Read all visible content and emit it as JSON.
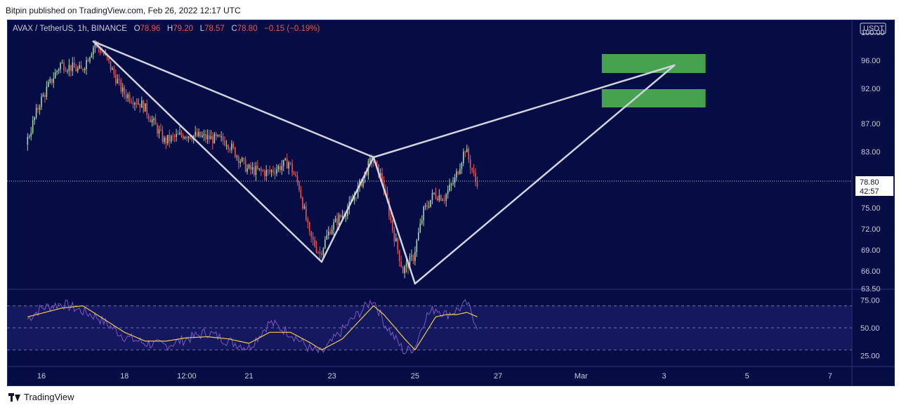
{
  "header": {
    "published": "Bitpin published on TradingView.com, Feb 26, 2022 12:17 UTC"
  },
  "legend": {
    "symbol": "AVAX / TetherUS, 1h, BINANCE",
    "o_label": "O",
    "o": "78.96",
    "h_label": "H",
    "h": "79.20",
    "l_label": "L",
    "l": "78.57",
    "c_label": "C",
    "c": "78.80",
    "change": "−0.15 (−0.19%)"
  },
  "price_axis": {
    "currency": "USDT",
    "ticks": [
      "100.00",
      "96.00",
      "92.00",
      "87.00",
      "83.00",
      "75.00",
      "72.00",
      "69.00",
      "66.00",
      "63.50"
    ],
    "last_price": "78.80",
    "countdown": "42:57"
  },
  "rsi_axis": {
    "ticks": [
      "75.00",
      "50.00",
      "25.00"
    ]
  },
  "time_axis": {
    "ticks": [
      "16",
      "18",
      "12:00",
      "21",
      "23",
      "25",
      "27",
      "Mar",
      "3",
      "5",
      "7"
    ]
  },
  "footer": {
    "brand": "TradingView"
  },
  "colors": {
    "background": "#050d44",
    "up": "#a5d6a7",
    "down": "#ef5350",
    "pattern": "#d1d4dc",
    "target_zone": "#4caf50",
    "rsi": "#7e57c2",
    "rsi_ma": "#f2c94c"
  },
  "chart_data": {
    "type": "candlestick",
    "symbol": "AVAX / TetherUS",
    "interval": "1h",
    "exchange": "BINANCE",
    "ylim": [
      63.5,
      101
    ],
    "price_path": [
      [
        "Feb 15 16:00",
        84
      ],
      [
        "Feb 16 00:00",
        90
      ],
      [
        "Feb 16 12:00",
        95.5
      ],
      [
        "Feb 17 00:00",
        94.5
      ],
      [
        "Feb 17 08:00",
        98.5
      ],
      [
        "Feb 17 14:00",
        96.5
      ],
      [
        "Feb 18 00:00",
        91.5
      ],
      [
        "Feb 18 12:00",
        89.5
      ],
      [
        "Feb 19 00:00",
        84.5
      ],
      [
        "Feb 19 12:00",
        85.5
      ],
      [
        "Feb 20 00:00",
        85
      ],
      [
        "Feb 20 12:00",
        84.5
      ],
      [
        "Feb 21 00:00",
        80.5
      ],
      [
        "Feb 21 12:00",
        80
      ],
      [
        "Feb 22 00:00",
        81.5
      ],
      [
        "Feb 22 06:00",
        78
      ],
      [
        "Feb 22 12:00",
        71
      ],
      [
        "Feb 22 18:00",
        68.5
      ],
      [
        "Feb 23 00:00",
        72
      ],
      [
        "Feb 23 12:00",
        75.5
      ],
      [
        "Feb 24 00:00",
        82
      ],
      [
        "Feb 24 06:00",
        79
      ],
      [
        "Feb 24 12:00",
        72
      ],
      [
        "Feb 24 18:00",
        66
      ],
      [
        "Feb 25 00:00",
        68
      ],
      [
        "Feb 25 06:00",
        74.5
      ],
      [
        "Feb 25 12:00",
        77
      ],
      [
        "Feb 25 18:00",
        76.5
      ],
      [
        "Feb 26 00:00",
        79
      ],
      [
        "Feb 26 06:00",
        83.5
      ],
      [
        "Feb 26 12:00",
        78.8
      ]
    ],
    "pattern": {
      "name": "bearish bat",
      "points": [
        {
          "time": "Feb 17 06:00",
          "price": 98.7
        },
        {
          "time": "Feb 22 18:00",
          "price": 67.3
        },
        {
          "time": "Feb 24 00:00",
          "price": 82.2
        },
        {
          "time": "Feb 25 00:00",
          "price": 64.2
        },
        {
          "time": "Mar 3 06:00",
          "price": 95.3
        }
      ]
    },
    "target_zones": [
      {
        "from_time": "Mar 1 12:00",
        "to_time": "Mar 4 00:00",
        "low": 94.2,
        "high": 96.9
      },
      {
        "from_time": "Mar 1 12:00",
        "to_time": "Mar 4 00:00",
        "low": 89.3,
        "high": 91.9
      }
    ],
    "last_price": 78.8,
    "rsi": {
      "levels": [
        70,
        50,
        30
      ],
      "ylim": [
        15,
        85
      ],
      "path": [
        [
          "Feb 15 16:00",
          58
        ],
        [
          "Feb 16 00:00",
          68
        ],
        [
          "Feb 16 12:00",
          72
        ],
        [
          "Feb 17 00:00",
          65
        ],
        [
          "Feb 17 08:00",
          60
        ],
        [
          "Feb 18 00:00",
          42
        ],
        [
          "Feb 18 12:00",
          36
        ],
        [
          "Feb 19 00:00",
          34
        ],
        [
          "Feb 19 12:00",
          40
        ],
        [
          "Feb 20 00:00",
          46
        ],
        [
          "Feb 20 12:00",
          38
        ],
        [
          "Feb 21 00:00",
          32
        ],
        [
          "Feb 21 12:00",
          55
        ],
        [
          "Feb 22 00:00",
          45
        ],
        [
          "Feb 22 12:00",
          30
        ],
        [
          "Feb 22 18:00",
          27
        ],
        [
          "Feb 23 06:00",
          48
        ],
        [
          "Feb 23 12:00",
          58
        ],
        [
          "Feb 24 00:00",
          76
        ],
        [
          "Feb 24 06:00",
          55
        ],
        [
          "Feb 24 18:00",
          28
        ],
        [
          "Feb 25 00:00",
          33
        ],
        [
          "Feb 25 06:00",
          60
        ],
        [
          "Feb 25 12:00",
          68
        ],
        [
          "Feb 25 18:00",
          62
        ],
        [
          "Feb 26 00:00",
          66
        ],
        [
          "Feb 26 06:00",
          72
        ],
        [
          "Feb 26 12:00",
          52
        ]
      ],
      "ma_path": [
        [
          "Feb 15 16:00",
          60
        ],
        [
          "Feb 16 12:00",
          68
        ],
        [
          "Feb 17 00:00",
          70
        ],
        [
          "Feb 17 12:00",
          58
        ],
        [
          "Feb 18 00:00",
          46
        ],
        [
          "Feb 18 12:00",
          38
        ],
        [
          "Feb 19 00:00",
          38
        ],
        [
          "Feb 19 12:00",
          41
        ],
        [
          "Feb 20 00:00",
          42
        ],
        [
          "Feb 20 12:00",
          40
        ],
        [
          "Feb 21 00:00",
          36
        ],
        [
          "Feb 21 12:00",
          46
        ],
        [
          "Feb 22 00:00",
          46
        ],
        [
          "Feb 22 12:00",
          36
        ],
        [
          "Feb 22 18:00",
          30
        ],
        [
          "Feb 23 06:00",
          40
        ],
        [
          "Feb 23 12:00",
          50
        ],
        [
          "Feb 24 00:00",
          70
        ],
        [
          "Feb 24 06:00",
          62
        ],
        [
          "Feb 24 18:00",
          40
        ],
        [
          "Feb 25 00:00",
          30
        ],
        [
          "Feb 25 06:00",
          45
        ],
        [
          "Feb 25 12:00",
          60
        ],
        [
          "Feb 25 18:00",
          62
        ],
        [
          "Feb 26 00:00",
          62
        ],
        [
          "Feb 26 06:00",
          64
        ],
        [
          "Feb 26 12:00",
          60
        ]
      ]
    }
  }
}
